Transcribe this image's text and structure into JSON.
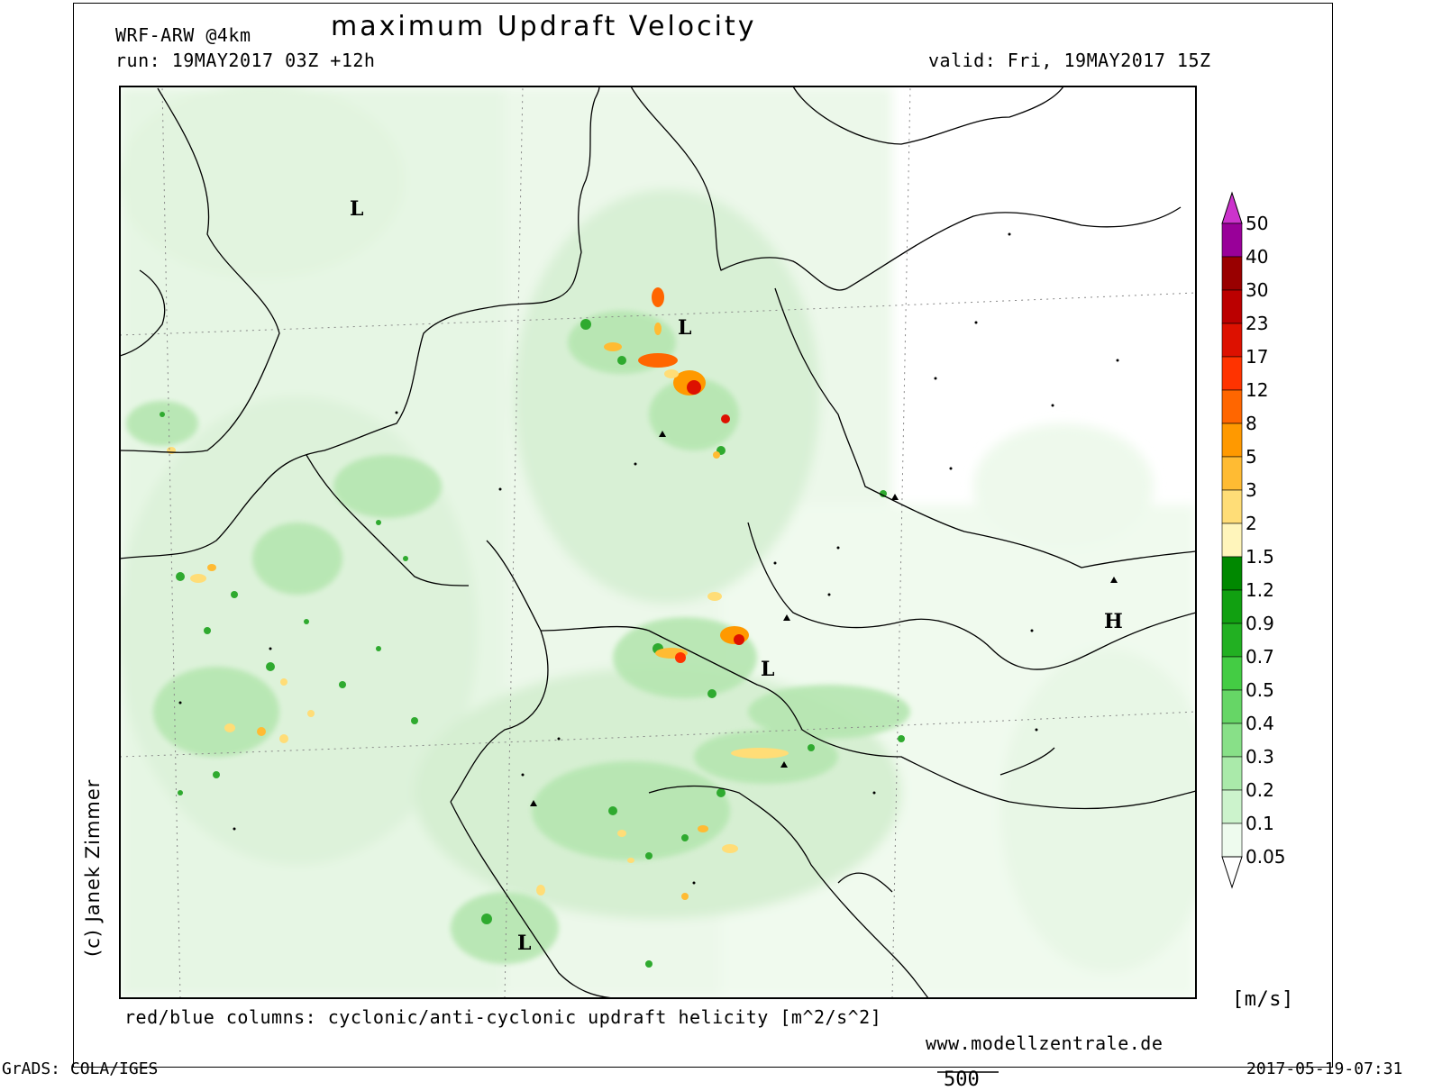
{
  "header": {
    "model": "WRF-ARW @4km",
    "title": "maximum Updraft Velocity",
    "run": "run: 19MAY2017 03Z +12h",
    "valid": "valid: Fri, 19MAY2017 15Z"
  },
  "footer": {
    "caption": "red/blue columns: cyclonic/anti-cyclonic updraft helicity [m^2/s^2]",
    "website": "www.modellzentrale.de",
    "grads": "GrADS: COLA/IGES",
    "timestamp": "2017-05-19-07:31",
    "scale_value": "500",
    "credit": "(c) Janek Zimmer"
  },
  "colorbar": {
    "unit": "[m/s]",
    "levels": [
      {
        "label": "50",
        "color": "#cc33cc"
      },
      {
        "label": "40",
        "color": "#990099"
      },
      {
        "label": "30",
        "color": "#990000"
      },
      {
        "label": "23",
        "color": "#bb0000"
      },
      {
        "label": "17",
        "color": "#dd1100"
      },
      {
        "label": "12",
        "color": "#ff3300"
      },
      {
        "label": "8",
        "color": "#ff6600"
      },
      {
        "label": "5",
        "color": "#ff9900"
      },
      {
        "label": "3",
        "color": "#ffbb33"
      },
      {
        "label": "2",
        "color": "#ffdd77"
      },
      {
        "label": "1.5",
        "color": "#fff5bb"
      },
      {
        "label": "1.2",
        "color": "#008800"
      },
      {
        "label": "0.9",
        "color": "#11a011"
      },
      {
        "label": "0.7",
        "color": "#22b022"
      },
      {
        "label": "0.5",
        "color": "#44cc44"
      },
      {
        "label": "0.4",
        "color": "#66d666"
      },
      {
        "label": "0.3",
        "color": "#88e088"
      },
      {
        "label": "0.2",
        "color": "#aaeaaa"
      },
      {
        "label": "0.1",
        "color": "#ccf3cc"
      },
      {
        "label": "0.05",
        "color": "#eefbee"
      }
    ]
  },
  "pressure_centers": [
    {
      "label": "L"
    },
    {
      "label": "L"
    },
    {
      "label": "L"
    },
    {
      "label": "L"
    },
    {
      "label": "H"
    }
  ]
}
